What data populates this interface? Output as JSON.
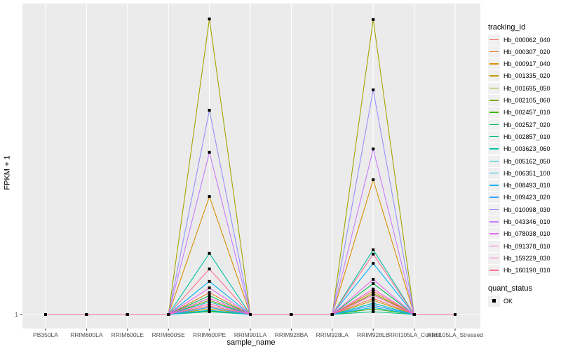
{
  "chart_data": {
    "type": "line",
    "title": "",
    "xlabel": "sample_name",
    "ylabel": "FPKM + 1",
    "y_ticks": [
      "1"
    ],
    "categories": [
      "PB350LA",
      "RRIM600LA",
      "RRIM600LE",
      "RRIM600SE",
      "RRIM600PE",
      "RRIM901LA",
      "RRIM928BA",
      "RRIM928LA",
      "RRIM928LE",
      "RRII105LA_Control",
      "RRII105LA_Stressed"
    ],
    "legend_title": "tracking_id",
    "legend_position": "right",
    "series": [
      {
        "name": "Hb_000062_040",
        "color": "#F8766D",
        "peaks": [
          3.9,
          6.5
        ]
      },
      {
        "name": "Hb_000307_020",
        "color": "#EA8331",
        "peaks": [
          8.4,
          8.8
        ]
      },
      {
        "name": "Hb_000917_040",
        "color": "#D89000",
        "peaks": [
          40.9,
          46.6
        ]
      },
      {
        "name": "Hb_001335_020",
        "color": "#C09B00",
        "peaks": [
          2.9,
          5.8
        ]
      },
      {
        "name": "Hb_001695_050",
        "color": "#A3A500",
        "peaks": [
          101,
          100.8
        ]
      },
      {
        "name": "Hb_002105_060",
        "color": "#7CAE00",
        "peaks": [
          5.8,
          8.1
        ]
      },
      {
        "name": "Hb_002457_010",
        "color": "#39B600",
        "peaks": [
          2.2,
          2.9
        ]
      },
      {
        "name": "Hb_002527_020",
        "color": "#00BB4E",
        "peaks": [
          7.4,
          11.5
        ]
      },
      {
        "name": "Hb_002857_010",
        "color": "#00BF7D",
        "peaks": [
          1.95,
          1.95
        ]
      },
      {
        "name": "Hb_003623_060",
        "color": "#00C1A3",
        "peaks": [
          21.7,
          22.9
        ]
      },
      {
        "name": "Hb_005162_050",
        "color": "#00BFC4",
        "peaks": [
          5.3,
          4.8
        ]
      },
      {
        "name": "Hb_006351_100",
        "color": "#00BAE0",
        "peaks": [
          2.4,
          3.4
        ]
      },
      {
        "name": "Hb_008493_010",
        "color": "#00B0F6",
        "peaks": [
          12.2,
          18.3
        ]
      },
      {
        "name": "Hb_009423_020",
        "color": "#35A2FF",
        "peaks": [
          3.4,
          4.1
        ]
      },
      {
        "name": "Hb_010098_030",
        "color": "#9590FF",
        "peaks": [
          70.1,
          77
        ]
      },
      {
        "name": "Hb_043346_010",
        "color": "#C77CFF",
        "peaks": [
          55.9,
          57
        ]
      },
      {
        "name": "Hb_078038_010",
        "color": "#E76BF3",
        "peaks": [
          10.0,
          12.9
        ]
      },
      {
        "name": "Hb_091378_010",
        "color": "#FA62DB",
        "peaks": [
          6.5,
          9.6
        ]
      },
      {
        "name": "Hb_159229_030",
        "color": "#FF62BC",
        "peaks": [
          4.6,
          7.6
        ]
      },
      {
        "name": "Hb_160190_010",
        "color": "#FF6C91",
        "peaks": [
          16.4,
          21.4
        ]
      }
    ],
    "peak_categories": [
      "RRIM600PE",
      "RRIM928LE"
    ],
    "baseline_value": 1,
    "shape_legend_title": "quant_status",
    "shape_legend": [
      {
        "label": "OK"
      }
    ]
  }
}
